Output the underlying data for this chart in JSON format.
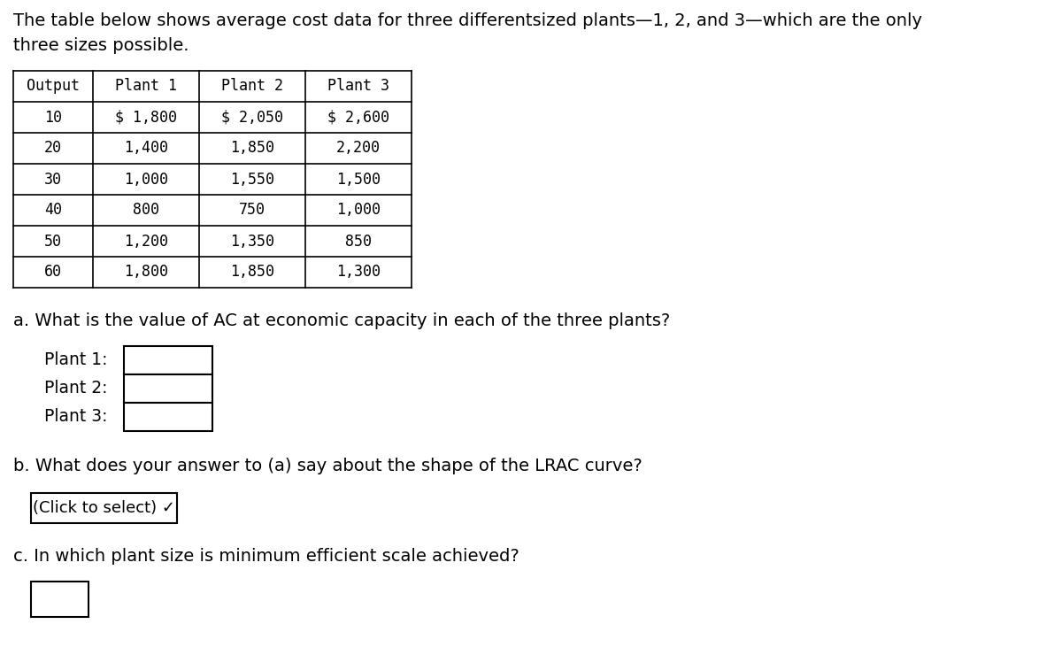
{
  "intro_text_line1": "The table below shows average cost data for three differentsized plants—1, 2, and 3—which are the only",
  "intro_text_line2": "three sizes possible.",
  "table_headers": [
    "Output",
    "Plant 1",
    "Plant 2",
    "Plant 3"
  ],
  "table_rows": [
    [
      "10",
      "$ 1,800",
      "$ 2,050",
      "$ 2,600"
    ],
    [
      "20",
      "1,400",
      "1,850",
      "2,200"
    ],
    [
      "30",
      "1,000",
      "1,550",
      "1,500"
    ],
    [
      "40",
      "800",
      "750",
      "1,000"
    ],
    [
      "50",
      "1,200",
      "1,350",
      "850"
    ],
    [
      "60",
      "1,800",
      "1,850",
      "1,300"
    ]
  ],
  "question_a": "a. What is the value of AC at economic capacity in each of the three plants?",
  "plant_labels": [
    "Plant 1:",
    "Plant 2:",
    "Plant 3:"
  ],
  "question_b": "b. What does your answer to (a) say about the shape of the LRAC curve?",
  "dropdown_text": "(Click to select) ✓",
  "question_c": "c. In which plant size is minimum efficient scale achieved?",
  "bg_color": "#ffffff",
  "text_color": "#000000"
}
